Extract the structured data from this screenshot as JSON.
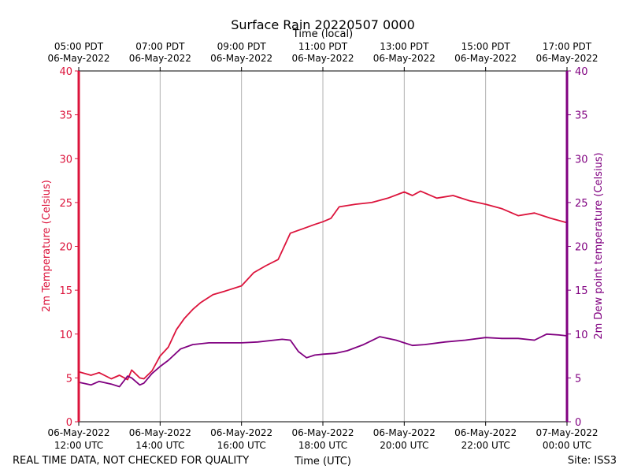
{
  "chart_data": {
    "type": "line",
    "title": "Surface Rain 20220507 0000",
    "top_axis_label": "Time (local)",
    "xlabel": "Time (UTC)",
    "ylabel_left": "2m Temperature (Celsius)",
    "ylabel_right": "2m Dew point temperature (Celsius)",
    "x_unit": "hours since 06-May-2022 12:00 UTC",
    "xlim": [
      0,
      12
    ],
    "ylim": [
      0,
      40
    ],
    "y_ticks": [
      "0",
      "5",
      "10",
      "15",
      "20",
      "25",
      "30",
      "35",
      "40"
    ],
    "grid": "vertical",
    "bottom_ticks": [
      {
        "x": 0,
        "line1": "06-May-2022",
        "line2": "12:00 UTC"
      },
      {
        "x": 2,
        "line1": "06-May-2022",
        "line2": "14:00 UTC"
      },
      {
        "x": 4,
        "line1": "06-May-2022",
        "line2": "16:00 UTC"
      },
      {
        "x": 6,
        "line1": "06-May-2022",
        "line2": "18:00 UTC"
      },
      {
        "x": 8,
        "line1": "06-May-2022",
        "line2": "20:00 UTC"
      },
      {
        "x": 10,
        "line1": "06-May-2022",
        "line2": "22:00 UTC"
      },
      {
        "x": 12,
        "line1": "07-May-2022",
        "line2": "00:00 UTC"
      }
    ],
    "top_ticks": [
      {
        "x": 0,
        "line1": "05:00 PDT",
        "line2": "06-May-2022"
      },
      {
        "x": 2,
        "line1": "07:00 PDT",
        "line2": "06-May-2022"
      },
      {
        "x": 4,
        "line1": "09:00 PDT",
        "line2": "06-May-2022"
      },
      {
        "x": 6,
        "line1": "11:00 PDT",
        "line2": "06-May-2022"
      },
      {
        "x": 8,
        "line1": "13:00 PDT",
        "line2": "06-May-2022"
      },
      {
        "x": 10,
        "line1": "15:00 PDT",
        "line2": "06-May-2022"
      },
      {
        "x": 12,
        "line1": "17:00 PDT",
        "line2": "06-May-2022"
      }
    ],
    "series": [
      {
        "name": "2m Temperature",
        "color": "#dc143c",
        "x": [
          0,
          0.3,
          0.5,
          0.8,
          1.0,
          1.2,
          1.3,
          1.5,
          1.6,
          1.8,
          2.0,
          2.2,
          2.4,
          2.6,
          2.8,
          3.0,
          3.3,
          3.6,
          4.0,
          4.3,
          4.6,
          4.9,
          5.2,
          5.5,
          5.8,
          6.0,
          6.2,
          6.4,
          6.8,
          7.2,
          7.6,
          8.0,
          8.2,
          8.4,
          8.8,
          9.2,
          9.6,
          10.0,
          10.4,
          10.8,
          11.2,
          11.6,
          12.0
        ],
        "y": [
          5.7,
          5.3,
          5.6,
          4.9,
          5.3,
          4.8,
          5.9,
          5.0,
          4.9,
          5.8,
          7.5,
          8.5,
          10.5,
          11.8,
          12.8,
          13.6,
          14.5,
          14.9,
          15.5,
          17.0,
          17.8,
          18.5,
          21.5,
          22.0,
          22.5,
          22.8,
          23.2,
          24.5,
          24.8,
          25.0,
          25.5,
          26.2,
          25.8,
          26.3,
          25.5,
          25.8,
          25.2,
          24.8,
          24.3,
          23.5,
          23.8,
          23.2,
          22.7
        ]
      },
      {
        "name": "2m Dew point temperature",
        "color": "#800080",
        "x": [
          0,
          0.3,
          0.5,
          0.8,
          1.0,
          1.2,
          1.3,
          1.5,
          1.6,
          1.8,
          2.0,
          2.2,
          2.5,
          2.8,
          3.2,
          3.6,
          4.0,
          4.4,
          4.8,
          5.0,
          5.2,
          5.4,
          5.6,
          5.8,
          6.0,
          6.3,
          6.6,
          7.0,
          7.4,
          7.8,
          8.0,
          8.2,
          8.5,
          9.0,
          9.5,
          10.0,
          10.4,
          10.8,
          11.2,
          11.5,
          11.8,
          12.0
        ],
        "y": [
          4.5,
          4.2,
          4.6,
          4.3,
          4.0,
          5.2,
          5.0,
          4.2,
          4.4,
          5.5,
          6.3,
          7.0,
          8.3,
          8.8,
          9.0,
          9.0,
          9.0,
          9.1,
          9.3,
          9.4,
          9.3,
          8.0,
          7.3,
          7.6,
          7.7,
          7.8,
          8.1,
          8.8,
          9.7,
          9.3,
          9.0,
          8.7,
          8.8,
          9.1,
          9.3,
          9.6,
          9.5,
          9.5,
          9.3,
          10.0,
          9.9,
          9.8
        ]
      }
    ],
    "footer_left": "REAL TIME DATA, NOT CHECKED FOR QUALITY",
    "footer_right": "Site: ISS3"
  }
}
